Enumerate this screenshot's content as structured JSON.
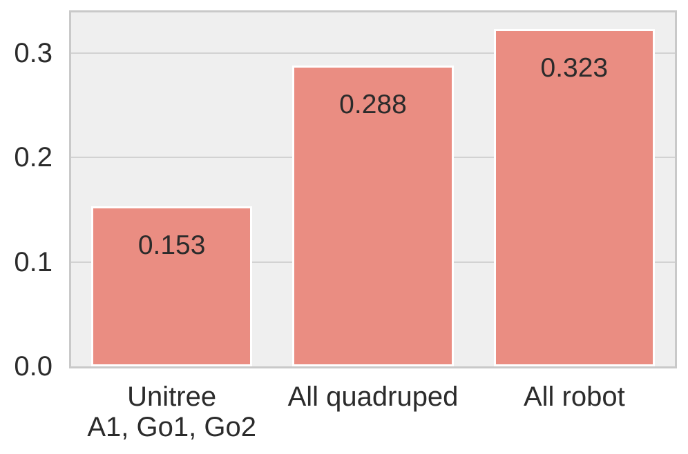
{
  "chart_data": {
    "type": "bar",
    "categories": [
      "Unitree\nA1, Go1, Go2",
      "All quadruped",
      "All robot"
    ],
    "values": [
      0.153,
      0.288,
      0.323
    ],
    "value_labels": [
      "0.153",
      "0.288",
      "0.323"
    ],
    "title": "",
    "xlabel": "",
    "ylabel": "",
    "yticks": [
      0.0,
      0.1,
      0.2,
      0.3
    ],
    "ytick_labels": [
      "0.0",
      "0.1",
      "0.2",
      "0.3"
    ],
    "ylim": [
      0,
      0.339
    ],
    "grid": "horizontal-only",
    "legend_position": "none",
    "bar_width_fraction": 0.8,
    "colors": {
      "bar_fill": "#ea8d82",
      "bar_edge": "#ffffff",
      "plot_background": "#efefef",
      "figure_background": "#ffffff",
      "gridline": "#d2d2d2",
      "spine": "#c9c9c9",
      "text": "#2b2b2b"
    }
  }
}
